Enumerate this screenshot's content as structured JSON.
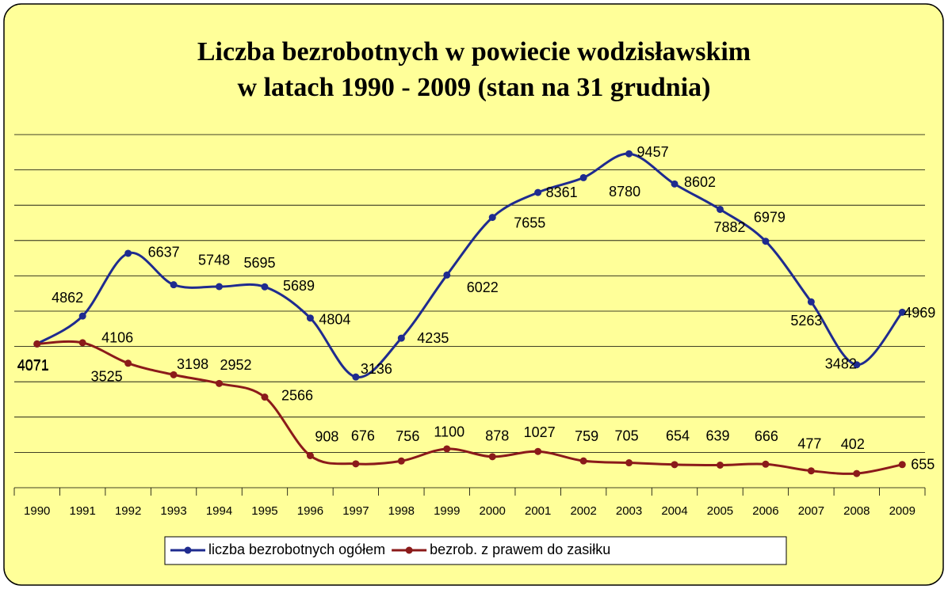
{
  "chart_data": {
    "type": "line",
    "title": [
      "Liczba bezrobotnych w powiecie wodzisławskim",
      "w latach 1990 - 2009 (stan na 31 grudnia)"
    ],
    "categories": [
      "1990",
      "1991",
      "1992",
      "1993",
      "1994",
      "1995",
      "1996",
      "1997",
      "1998",
      "1999",
      "2000",
      "2001",
      "2002",
      "2003",
      "2004",
      "2005",
      "2006",
      "2007",
      "2008",
      "2009"
    ],
    "series": [
      {
        "name": "liczba bezrobotnych ogółem",
        "color": "#1f2b8f",
        "values": [
          4071,
          4862,
          6637,
          5748,
          5695,
          5689,
          4804,
          3136,
          4235,
          6022,
          7655,
          8361,
          8780,
          9457,
          8602,
          7882,
          6979,
          5263,
          3482,
          4969
        ]
      },
      {
        "name": "bezrob. z prawem do zasiłku",
        "color": "#8b1a1a",
        "values": [
          4071,
          4106,
          3525,
          3198,
          2952,
          2566,
          908,
          676,
          756,
          1100,
          878,
          1027,
          759,
          705,
          654,
          639,
          666,
          477,
          402,
          655
        ]
      }
    ],
    "ylim": [
      0,
      10000
    ],
    "yticks": [
      0,
      1000,
      2000,
      3000,
      4000,
      5000,
      6000,
      7000,
      8000,
      9000,
      10000
    ],
    "grid": true,
    "legend": "bottom"
  }
}
